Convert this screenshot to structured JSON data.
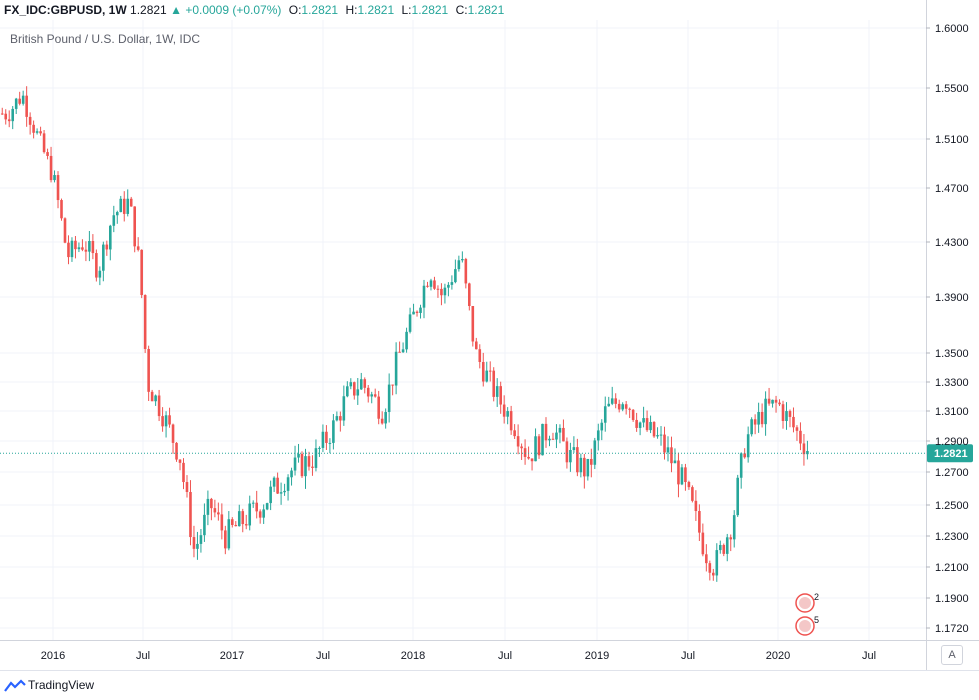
{
  "header": {
    "symbol": "FX_IDC:GBPUSD, 1W",
    "last": "1.2821",
    "change": "+0.0009 (+0.07%)",
    "o_label": "O:",
    "o": "1.2821",
    "h_label": "H:",
    "h": "1.2821",
    "l_label": "L:",
    "l": "1.2821",
    "c_label": "C:",
    "c": "1.2821"
  },
  "legend_title": "British Pound / U.S. Dollar, 1W, IDC",
  "price_label": "1.2821",
  "auto_button": "A",
  "footer": {
    "brand": "TradingView"
  },
  "events": [
    {
      "flag": "uk-flag-icon",
      "count": "2"
    },
    {
      "flag": "us-flag-icon",
      "count": "5"
    }
  ],
  "colors": {
    "up": "#26a69a",
    "down": "#ef5350",
    "price_line": "#26a69a"
  },
  "chart_data": {
    "type": "candlestick",
    "title": "British Pound / U.S. Dollar, 1W, IDC",
    "y_ticks": [
      "1.6000",
      "1.5500",
      "1.5100",
      "1.4700",
      "1.4300",
      "1.3900",
      "1.3500",
      "1.3300",
      "1.3100",
      "1.2900",
      "1.2700",
      "1.2500",
      "1.2300",
      "1.2100",
      "1.1900",
      "1.1720"
    ],
    "x_ticks": [
      "2016",
      "Jul",
      "2017",
      "Jul",
      "2018",
      "Jul",
      "2019",
      "Jul",
      "2020",
      "Jul"
    ],
    "last_price": 1.2821,
    "x_range": [
      "2015-09",
      "2020-09"
    ],
    "close_path": [
      [
        2015.75,
        1.53
      ],
      [
        2015.83,
        1.545
      ],
      [
        2015.92,
        1.51
      ],
      [
        2016.0,
        1.48
      ],
      [
        2016.08,
        1.42
      ],
      [
        2016.17,
        1.43
      ],
      [
        2016.25,
        1.41
      ],
      [
        2016.33,
        1.45
      ],
      [
        2016.42,
        1.46
      ],
      [
        2016.48,
        1.41
      ],
      [
        2016.52,
        1.33
      ],
      [
        2016.6,
        1.31
      ],
      [
        2016.7,
        1.28
      ],
      [
        2016.78,
        1.22
      ],
      [
        2016.87,
        1.25
      ],
      [
        2016.95,
        1.23
      ],
      [
        2017.05,
        1.24
      ],
      [
        2017.15,
        1.25
      ],
      [
        2017.3,
        1.27
      ],
      [
        2017.45,
        1.28
      ],
      [
        2017.55,
        1.3
      ],
      [
        2017.62,
        1.32
      ],
      [
        2017.7,
        1.33
      ],
      [
        2017.82,
        1.31
      ],
      [
        2017.9,
        1.345
      ],
      [
        2018.0,
        1.38
      ],
      [
        2018.08,
        1.41
      ],
      [
        2018.15,
        1.39
      ],
      [
        2018.25,
        1.42
      ],
      [
        2018.33,
        1.35
      ],
      [
        2018.45,
        1.32
      ],
      [
        2018.55,
        1.3
      ],
      [
        2018.62,
        1.28
      ],
      [
        2018.75,
        1.3
      ],
      [
        2018.85,
        1.28
      ],
      [
        2018.95,
        1.27
      ],
      [
        2019.05,
        1.31
      ],
      [
        2019.15,
        1.32
      ],
      [
        2019.25,
        1.3
      ],
      [
        2019.35,
        1.29
      ],
      [
        2019.45,
        1.27
      ],
      [
        2019.52,
        1.25
      ],
      [
        2019.6,
        1.22
      ],
      [
        2019.65,
        1.21
      ],
      [
        2019.75,
        1.24
      ],
      [
        2019.82,
        1.29
      ],
      [
        2019.92,
        1.31
      ],
      [
        2020.0,
        1.315
      ],
      [
        2020.08,
        1.3
      ],
      [
        2020.18,
        1.2821
      ]
    ]
  }
}
